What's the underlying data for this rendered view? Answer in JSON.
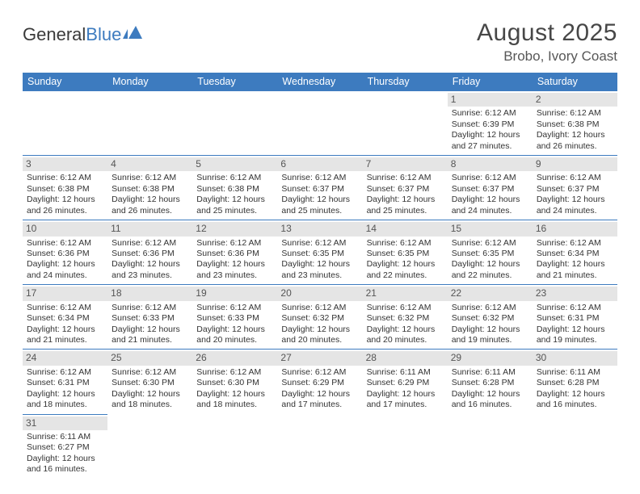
{
  "brand": {
    "part1": "General",
    "part2": "Blue"
  },
  "title": "August 2025",
  "location": "Brobo, Ivory Coast",
  "colors": {
    "header_bg": "#3d7bbf",
    "header_fg": "#ffffff",
    "daynum_bg": "#e5e5e5",
    "daynum_fg": "#555555",
    "text": "#333333",
    "page_bg": "#ffffff"
  },
  "fonts": {
    "title_size": 30,
    "location_size": 17,
    "header_size": 12.5,
    "cell_size": 10.5
  },
  "weekdays": [
    "Sunday",
    "Monday",
    "Tuesday",
    "Wednesday",
    "Thursday",
    "Friday",
    "Saturday"
  ],
  "grid": {
    "rows": 6,
    "cols": 7,
    "first_weekday_index": 5,
    "days_in_month": 31
  },
  "days": {
    "1": {
      "sunrise": "6:12 AM",
      "sunset": "6:39 PM",
      "daylight": "12 hours and 27 minutes."
    },
    "2": {
      "sunrise": "6:12 AM",
      "sunset": "6:38 PM",
      "daylight": "12 hours and 26 minutes."
    },
    "3": {
      "sunrise": "6:12 AM",
      "sunset": "6:38 PM",
      "daylight": "12 hours and 26 minutes."
    },
    "4": {
      "sunrise": "6:12 AM",
      "sunset": "6:38 PM",
      "daylight": "12 hours and 26 minutes."
    },
    "5": {
      "sunrise": "6:12 AM",
      "sunset": "6:38 PM",
      "daylight": "12 hours and 25 minutes."
    },
    "6": {
      "sunrise": "6:12 AM",
      "sunset": "6:37 PM",
      "daylight": "12 hours and 25 minutes."
    },
    "7": {
      "sunrise": "6:12 AM",
      "sunset": "6:37 PM",
      "daylight": "12 hours and 25 minutes."
    },
    "8": {
      "sunrise": "6:12 AM",
      "sunset": "6:37 PM",
      "daylight": "12 hours and 24 minutes."
    },
    "9": {
      "sunrise": "6:12 AM",
      "sunset": "6:37 PM",
      "daylight": "12 hours and 24 minutes."
    },
    "10": {
      "sunrise": "6:12 AM",
      "sunset": "6:36 PM",
      "daylight": "12 hours and 24 minutes."
    },
    "11": {
      "sunrise": "6:12 AM",
      "sunset": "6:36 PM",
      "daylight": "12 hours and 23 minutes."
    },
    "12": {
      "sunrise": "6:12 AM",
      "sunset": "6:36 PM",
      "daylight": "12 hours and 23 minutes."
    },
    "13": {
      "sunrise": "6:12 AM",
      "sunset": "6:35 PM",
      "daylight": "12 hours and 23 minutes."
    },
    "14": {
      "sunrise": "6:12 AM",
      "sunset": "6:35 PM",
      "daylight": "12 hours and 22 minutes."
    },
    "15": {
      "sunrise": "6:12 AM",
      "sunset": "6:35 PM",
      "daylight": "12 hours and 22 minutes."
    },
    "16": {
      "sunrise": "6:12 AM",
      "sunset": "6:34 PM",
      "daylight": "12 hours and 21 minutes."
    },
    "17": {
      "sunrise": "6:12 AM",
      "sunset": "6:34 PM",
      "daylight": "12 hours and 21 minutes."
    },
    "18": {
      "sunrise": "6:12 AM",
      "sunset": "6:33 PM",
      "daylight": "12 hours and 21 minutes."
    },
    "19": {
      "sunrise": "6:12 AM",
      "sunset": "6:33 PM",
      "daylight": "12 hours and 20 minutes."
    },
    "20": {
      "sunrise": "6:12 AM",
      "sunset": "6:32 PM",
      "daylight": "12 hours and 20 minutes."
    },
    "21": {
      "sunrise": "6:12 AM",
      "sunset": "6:32 PM",
      "daylight": "12 hours and 20 minutes."
    },
    "22": {
      "sunrise": "6:12 AM",
      "sunset": "6:32 PM",
      "daylight": "12 hours and 19 minutes."
    },
    "23": {
      "sunrise": "6:12 AM",
      "sunset": "6:31 PM",
      "daylight": "12 hours and 19 minutes."
    },
    "24": {
      "sunrise": "6:12 AM",
      "sunset": "6:31 PM",
      "daylight": "12 hours and 18 minutes."
    },
    "25": {
      "sunrise": "6:12 AM",
      "sunset": "6:30 PM",
      "daylight": "12 hours and 18 minutes."
    },
    "26": {
      "sunrise": "6:12 AM",
      "sunset": "6:30 PM",
      "daylight": "12 hours and 18 minutes."
    },
    "27": {
      "sunrise": "6:12 AM",
      "sunset": "6:29 PM",
      "daylight": "12 hours and 17 minutes."
    },
    "28": {
      "sunrise": "6:11 AM",
      "sunset": "6:29 PM",
      "daylight": "12 hours and 17 minutes."
    },
    "29": {
      "sunrise": "6:11 AM",
      "sunset": "6:28 PM",
      "daylight": "12 hours and 16 minutes."
    },
    "30": {
      "sunrise": "6:11 AM",
      "sunset": "6:28 PM",
      "daylight": "12 hours and 16 minutes."
    },
    "31": {
      "sunrise": "6:11 AM",
      "sunset": "6:27 PM",
      "daylight": "12 hours and 16 minutes."
    }
  },
  "labels": {
    "sunrise": "Sunrise:",
    "sunset": "Sunset:",
    "daylight": "Daylight:"
  }
}
